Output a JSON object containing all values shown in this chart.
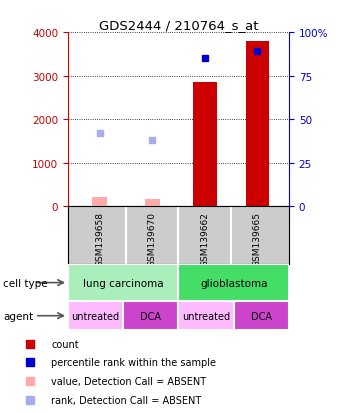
{
  "title": "GDS2444 / 210764_s_at",
  "samples": [
    "GSM139658",
    "GSM139670",
    "GSM139662",
    "GSM139665"
  ],
  "bar_values": [
    null,
    null,
    2850,
    3800
  ],
  "absent_bar_values": [
    200,
    170,
    null,
    null
  ],
  "absent_bar_color": "#ffaaaa",
  "bar_color": "#cc0000",
  "percentile_values": [
    null,
    null,
    85,
    89
  ],
  "percentile_color": "#0000cc",
  "absent_rank_values": [
    42,
    38,
    null,
    null
  ],
  "absent_rank_color": "#aaaaee",
  "ylim_left": [
    0,
    4000
  ],
  "ylim_right": [
    0,
    100
  ],
  "yticks_left": [
    0,
    1000,
    2000,
    3000,
    4000
  ],
  "yticks_right": [
    0,
    25,
    50,
    75,
    100
  ],
  "ytick_labels_right": [
    "0",
    "25",
    "50",
    "75",
    "100%"
  ],
  "cell_types": [
    {
      "label": "lung carcinoma",
      "color": "#aaeebb",
      "span": [
        0,
        2
      ]
    },
    {
      "label": "glioblastoma",
      "color": "#44dd66",
      "span": [
        2,
        4
      ]
    }
  ],
  "agents": [
    {
      "label": "untreated",
      "color": "#ffbbff",
      "span": [
        0,
        1
      ]
    },
    {
      "label": "DCA",
      "color": "#cc44cc",
      "span": [
        1,
        2
      ]
    },
    {
      "label": "untreated",
      "color": "#ffbbff",
      "span": [
        2,
        3
      ]
    },
    {
      "label": "DCA",
      "color": "#cc44cc",
      "span": [
        3,
        4
      ]
    }
  ],
  "left_axis_color": "#cc0000",
  "right_axis_color": "#0000cc",
  "legend_items": [
    {
      "label": "count",
      "color": "#cc0000"
    },
    {
      "label": "percentile rank within the sample",
      "color": "#0000cc"
    },
    {
      "label": "value, Detection Call = ABSENT",
      "color": "#ffaaaa"
    },
    {
      "label": "rank, Detection Call = ABSENT",
      "color": "#aaaaee"
    }
  ],
  "bar_width": 0.45,
  "absent_bar_width": 0.28
}
